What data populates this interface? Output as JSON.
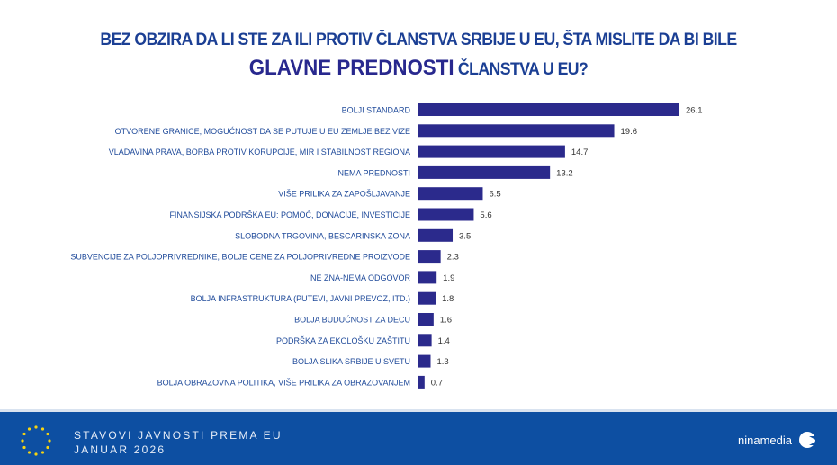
{
  "title": {
    "line1": "BEZ OBZIRA DA LI STE ZA ILI PROTIV ČLANSTVA SRBIJE U EU, ŠTA MISLITE DA BI BILE",
    "highlight": "GLAVNE PREDNOSTI",
    "line2_rest": " ČLANSTVA U EU?"
  },
  "chart_data": {
    "type": "bar",
    "orientation": "horizontal",
    "title": "BEZ OBZIRA DA LI STE ZA ILI PROTIV ČLANSTVA SRBIJE U EU, ŠTA MISLITE DA BI BILE GLAVNE PREDNOSTI ČLANSTVA U EU?",
    "categories": [
      "BOLJI STANDARD",
      "OTVORENE GRANICE, MOGUĆNOST DA SE PUTUJE U EU ZEMLJE BEZ VIZE",
      "VLADAVINA PRAVA, BORBA PROTIV KORUPCIJE, MIR I STABILNOST REGIONA",
      "NEMA PREDNOSTI",
      "VIŠE PRILIKA ZA ZAPOŠLJAVANJE",
      "FINANSIJSKA PODRŠKA EU: POMOĆ, DONACIJE, INVESTICIJE",
      "SLOBODNA TRGOVINA, BESCARINSKA ZONA",
      "SUBVENCIJE ZA POLJOPRIVREDNIKE, BOLJE CENE ZA POLJOPRIVREDNE PROIZVODE",
      "NE ZNA-NEMA ODGOVOR",
      "BOLJA INFRASTRUKTURA (PUTEVI, JAVNI PREVOZ, ITD.)",
      "BOLJA BUDUĆNOST ZA DECU",
      "PODRŠKA ZA EKOLOŠKU ZAŠTITU",
      "BOLJA SLIKA SRBIJE U SVETU",
      "BOLJA OBRAZOVNA POLITIKA, VIŠE PRILIKA ZA OBRAZOVANJEM"
    ],
    "values": [
      26.1,
      19.6,
      14.7,
      13.2,
      6.5,
      5.6,
      3.5,
      2.3,
      1.9,
      1.8,
      1.6,
      1.4,
      1.3,
      0.7
    ],
    "xlim": [
      0,
      26.1
    ],
    "grid": false,
    "bar_color": "#2b2a8c",
    "data_labels": true
  },
  "footer": {
    "line1": "STAVOVI JAVNOSTI PREMA EU",
    "line2": "JANUAR 2026",
    "brand": "ninamedia"
  }
}
